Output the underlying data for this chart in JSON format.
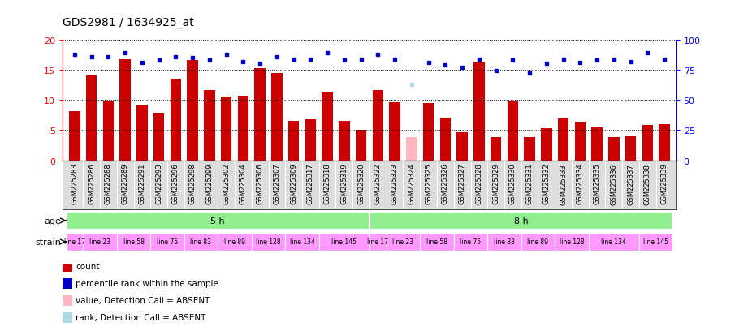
{
  "title": "GDS2981 / 1634925_at",
  "categories": [
    "GSM225283",
    "GSM225286",
    "GSM225288",
    "GSM225289",
    "GSM225291",
    "GSM225293",
    "GSM225296",
    "GSM225298",
    "GSM225299",
    "GSM225302",
    "GSM225304",
    "GSM225306",
    "GSM225307",
    "GSM225309",
    "GSM225317",
    "GSM225318",
    "GSM225319",
    "GSM225320",
    "GSM225322",
    "GSM225323",
    "GSM225324",
    "GSM225325",
    "GSM225326",
    "GSM225327",
    "GSM225328",
    "GSM225329",
    "GSM225330",
    "GSM225331",
    "GSM225332",
    "GSM225333",
    "GSM225334",
    "GSM225335",
    "GSM225336",
    "GSM225337",
    "GSM225338",
    "GSM225339"
  ],
  "bar_values": [
    8.1,
    14.0,
    9.9,
    16.7,
    9.2,
    7.9,
    13.5,
    16.6,
    11.7,
    10.5,
    10.7,
    15.2,
    14.5,
    6.6,
    6.8,
    11.4,
    6.6,
    5.1,
    11.6,
    9.6,
    3.9,
    9.5,
    7.1,
    4.6,
    16.3,
    3.8,
    9.7,
    3.8,
    5.3,
    7.0,
    6.4,
    5.4,
    3.9,
    4.0,
    5.9,
    6.0
  ],
  "bar_absent": [
    false,
    false,
    false,
    false,
    false,
    false,
    false,
    false,
    false,
    false,
    false,
    false,
    false,
    false,
    false,
    false,
    false,
    false,
    false,
    false,
    true,
    false,
    false,
    false,
    false,
    false,
    false,
    false,
    false,
    false,
    false,
    false,
    false,
    false,
    false,
    false
  ],
  "percentile_values": [
    88,
    86,
    86,
    89,
    81,
    83,
    86,
    85,
    83,
    88,
    82,
    80,
    86,
    84,
    84,
    89,
    83,
    84,
    88,
    84,
    63,
    81,
    79,
    77,
    84,
    74,
    83,
    72,
    80,
    84,
    81,
    83,
    84,
    82,
    89,
    84
  ],
  "percentile_absent": [
    false,
    false,
    false,
    false,
    false,
    false,
    false,
    false,
    false,
    false,
    false,
    false,
    false,
    false,
    false,
    false,
    false,
    false,
    false,
    false,
    true,
    false,
    false,
    false,
    false,
    false,
    false,
    false,
    false,
    false,
    false,
    false,
    false,
    false,
    false,
    false
  ],
  "bar_color": "#CC0000",
  "bar_absent_color": "#FFB6C1",
  "dot_color": "#0000CC",
  "dot_absent_color": "#ADD8E6",
  "ylim_left": [
    0,
    20
  ],
  "ylim_right": [
    0,
    100
  ],
  "yticks_left": [
    0,
    5,
    10,
    15,
    20
  ],
  "yticks_right": [
    0,
    25,
    50,
    75,
    100
  ],
  "age_groups": [
    {
      "label": "5 h",
      "start": 0,
      "end": 18
    },
    {
      "label": "8 h",
      "start": 18,
      "end": 36
    }
  ],
  "strain_groups": [
    {
      "label": "line 17",
      "start": 0,
      "end": 1
    },
    {
      "label": "line 23",
      "start": 1,
      "end": 3
    },
    {
      "label": "line 58",
      "start": 3,
      "end": 5
    },
    {
      "label": "line 75",
      "start": 5,
      "end": 7
    },
    {
      "label": "line 83",
      "start": 7,
      "end": 9
    },
    {
      "label": "line 89",
      "start": 9,
      "end": 11
    },
    {
      "label": "line 128",
      "start": 11,
      "end": 13
    },
    {
      "label": "line 134",
      "start": 13,
      "end": 15
    },
    {
      "label": "line 145",
      "start": 15,
      "end": 18
    },
    {
      "label": "line 17",
      "start": 18,
      "end": 19
    },
    {
      "label": "line 23",
      "start": 19,
      "end": 21
    },
    {
      "label": "line 58",
      "start": 21,
      "end": 23
    },
    {
      "label": "line 75",
      "start": 23,
      "end": 25
    },
    {
      "label": "line 83",
      "start": 25,
      "end": 27
    },
    {
      "label": "line 89",
      "start": 27,
      "end": 29
    },
    {
      "label": "line 128",
      "start": 29,
      "end": 31
    },
    {
      "label": "line 134",
      "start": 31,
      "end": 34
    },
    {
      "label": "line 145",
      "start": 34,
      "end": 36
    }
  ],
  "legend_items": [
    {
      "label": "count",
      "color": "#CC0000"
    },
    {
      "label": "percentile rank within the sample",
      "color": "#0000CC"
    },
    {
      "label": "value, Detection Call = ABSENT",
      "color": "#FFB6C1"
    },
    {
      "label": "rank, Detection Call = ABSENT",
      "color": "#ADD8E6"
    }
  ],
  "background_color": "#FFFFFF",
  "age_color": "#90EE90",
  "strain_color": "#FF99FF",
  "xticklabel_bg": "#DDDDDD",
  "tick_label_fontsize": 6.0,
  "title_fontsize": 10
}
